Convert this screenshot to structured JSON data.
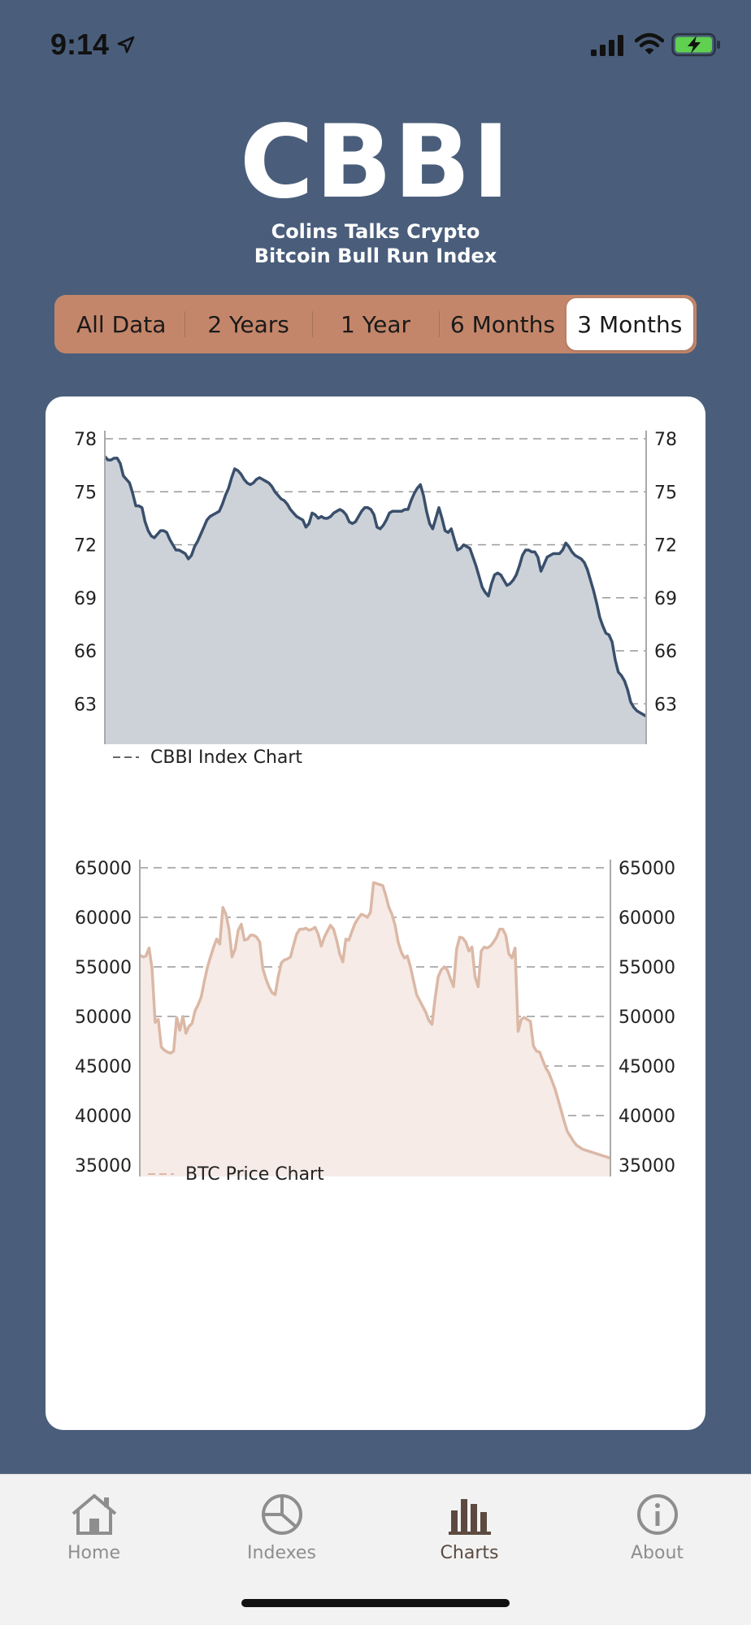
{
  "status_bar": {
    "time": "9:14",
    "icons": [
      "location-arrow-icon",
      "cellular-signal-icon",
      "wifi-icon",
      "battery-charging-icon"
    ]
  },
  "header": {
    "title": "CBBI",
    "subtitle_line1": "Colins Talks Crypto",
    "subtitle_line2": "Bitcoin Bull Run Index"
  },
  "segments": {
    "items": [
      "All Data",
      "2 Years",
      "1 Year",
      "6 Months",
      "3 Months"
    ],
    "selected": "3 Months"
  },
  "colors": {
    "background": "#4a5e7b",
    "segment_bg": "#c4866a",
    "cbbi_line": "#3a4f6c",
    "cbbi_fill": "#cdd2d9",
    "btc_line": "#dbb8a6",
    "btc_fill": "#f6ebe6"
  },
  "chart_data": [
    {
      "type": "area",
      "legend": "CBBI Index Chart",
      "legend_position": "bottom-left",
      "y_ticks": [
        "78",
        "75",
        "72",
        "69",
        "66",
        "63"
      ],
      "ylim": [
        62,
        78
      ],
      "grid": true,
      "x": [
        0,
        1,
        2,
        3,
        4,
        5,
        6,
        7,
        8,
        9,
        10,
        11,
        12,
        13,
        14,
        15,
        16,
        17,
        18,
        19,
        20,
        21,
        22,
        23,
        24,
        25,
        26,
        27,
        28,
        29,
        30,
        31,
        32,
        33,
        34,
        35,
        36,
        37,
        38,
        39,
        40,
        41,
        42,
        43,
        44,
        45,
        46,
        47,
        48,
        49,
        50,
        51,
        52,
        53,
        54,
        55,
        56,
        57,
        58,
        59,
        60,
        61,
        62,
        63,
        64,
        65,
        66,
        67,
        68,
        69,
        70,
        71,
        72,
        73,
        74,
        75,
        76,
        77,
        78,
        79,
        80,
        81,
        82,
        83,
        84,
        85,
        86,
        87,
        88,
        89,
        90,
        91,
        92,
        93,
        94,
        95,
        96,
        97,
        98,
        99,
        100,
        101,
        102,
        103,
        104,
        105,
        106,
        107,
        108,
        109,
        110,
        111,
        112,
        113,
        114,
        115,
        116,
        117,
        118,
        119,
        120,
        121,
        122,
        123,
        124,
        125,
        126,
        127,
        128,
        129,
        130,
        131,
        132,
        133,
        134,
        135,
        136,
        137,
        138,
        139,
        140,
        141,
        142,
        143,
        144,
        145,
        146,
        147,
        148,
        149,
        150,
        151,
        152,
        153,
        154,
        155,
        156,
        157,
        158,
        159,
        160,
        161,
        162,
        163,
        164,
        165,
        166,
        167,
        168,
        169,
        170,
        171,
        172,
        173,
        174,
        175
      ],
      "values": [
        77.0,
        76.8,
        76.8,
        76.9,
        76.9,
        76.6,
        75.9,
        75.7,
        75.5,
        74.9,
        74.2,
        74.2,
        74.1,
        73.3,
        72.8,
        72.5,
        72.4,
        72.6,
        72.8,
        72.8,
        72.7,
        72.3,
        72.0,
        71.7,
        71.7,
        71.6,
        71.5,
        71.2,
        71.4,
        71.9,
        72.2,
        72.6,
        73.0,
        73.4,
        73.6,
        73.7,
        73.8,
        73.9,
        74.3,
        74.8,
        75.2,
        75.8,
        76.3,
        76.2,
        76.0,
        75.7,
        75.5,
        75.4,
        75.5,
        75.7,
        75.8,
        75.7,
        75.6,
        75.5,
        75.3,
        75.0,
        74.8,
        74.6,
        74.5,
        74.3,
        74.0,
        73.8,
        73.6,
        73.5,
        73.4,
        73.0,
        73.2,
        73.8,
        73.7,
        73.5,
        73.6,
        73.5,
        73.5,
        73.6,
        73.8,
        73.9,
        74.0,
        73.9,
        73.7,
        73.3,
        73.2,
        73.3,
        73.6,
        73.9,
        74.1,
        74.1,
        74.0,
        73.7,
        73.0,
        72.9,
        73.1,
        73.4,
        73.8,
        73.9,
        73.9,
        73.9,
        73.9,
        74.0,
        74.0,
        74.5,
        74.9,
        75.2,
        75.4,
        74.8,
        73.9,
        73.2,
        72.9,
        73.5,
        74.1,
        73.5,
        72.8,
        72.7,
        72.9,
        72.3,
        71.7,
        71.8,
        72.0,
        71.9,
        71.8,
        71.3,
        70.8,
        70.2,
        69.6,
        69.3,
        69.1,
        69.8,
        70.3,
        70.4,
        70.3,
        70.0,
        69.7,
        69.8,
        70.0,
        70.3,
        70.8,
        71.4,
        71.7,
        71.7,
        71.6,
        71.6,
        71.3,
        70.5,
        70.9,
        71.3,
        71.4,
        71.5,
        71.5,
        71.5,
        71.7,
        72.1,
        71.9,
        71.6,
        71.4,
        71.3,
        71.2,
        71.0,
        70.6,
        70.0,
        69.4,
        68.7,
        67.9,
        67.4,
        67.0,
        66.9,
        66.5,
        65.5,
        64.8,
        64.6,
        64.3,
        63.8,
        63.1,
        62.8,
        62.6,
        62.5,
        62.4,
        62.3
      ],
      "note": ""
    },
    {
      "type": "area",
      "legend": "BTC Price Chart",
      "legend_position": "bottom-left",
      "y_ticks": [
        "65000",
        "60000",
        "55000",
        "50000",
        "45000",
        "40000",
        "35000"
      ],
      "ylim": [
        35000,
        65000
      ],
      "grid": true,
      "x": [
        0,
        1,
        2,
        3,
        4,
        5,
        6,
        7,
        8,
        9,
        10,
        11,
        12,
        13,
        14,
        15,
        16,
        17,
        18,
        19,
        20,
        21,
        22,
        23,
        24,
        25,
        26,
        27,
        28,
        29,
        30,
        31,
        32,
        33,
        34,
        35,
        36,
        37,
        38,
        39,
        40,
        41,
        42,
        43,
        44,
        45,
        46,
        47,
        48,
        49,
        50,
        51,
        52,
        53,
        54,
        55,
        56,
        57,
        58,
        59,
        60,
        61,
        62,
        63,
        64,
        65,
        66,
        67,
        68,
        69,
        70,
        71,
        72,
        73,
        74,
        75,
        76,
        77,
        78,
        79,
        80,
        81,
        82,
        83,
        84,
        85,
        86,
        87,
        88,
        89,
        90,
        91,
        92,
        93,
        94,
        95,
        96,
        97,
        98,
        99,
        100,
        101,
        102,
        103,
        104,
        105,
        106,
        107,
        108,
        109,
        110,
        111,
        112,
        113,
        114,
        115,
        116,
        117,
        118,
        119,
        120,
        121,
        122,
        123,
        124,
        125,
        126,
        127,
        128,
        129,
        130,
        131,
        132,
        133,
        134,
        135,
        136,
        137,
        138,
        139,
        140,
        141,
        142,
        143,
        144,
        145,
        146,
        147,
        148,
        149,
        150,
        151,
        152,
        153
      ],
      "values": [
        56200,
        56000,
        56100,
        56900,
        54800,
        49400,
        49700,
        46900,
        46600,
        46400,
        46300,
        46500,
        49900,
        48600,
        50000,
        48300,
        49000,
        49300,
        50600,
        51200,
        52000,
        53600,
        55000,
        56000,
        57000,
        57800,
        57300,
        61000,
        60300,
        58800,
        56000,
        56800,
        58700,
        59300,
        57700,
        57800,
        58200,
        58200,
        58000,
        57500,
        54800,
        53800,
        53000,
        52400,
        52200,
        54000,
        55400,
        55700,
        55800,
        56000,
        57200,
        58300,
        58800,
        58800,
        58900,
        58700,
        58800,
        59000,
        58300,
        57100,
        58000,
        58600,
        59200,
        58800,
        57700,
        56300,
        55500,
        57800,
        57700,
        58600,
        59400,
        59900,
        60300,
        60200,
        60000,
        60500,
        63500,
        63400,
        63300,
        63200,
        62200,
        61000,
        60300,
        59200,
        57500,
        56500,
        55900,
        56100,
        55000,
        53600,
        52200,
        51600,
        51000,
        50400,
        49600,
        49200,
        51800,
        54000,
        54700,
        55000,
        54700,
        53800,
        53000,
        56800,
        58000,
        57900,
        57500,
        56600,
        57000,
        54000,
        53000,
        56600,
        57000,
        56900,
        57100,
        57500,
        58000,
        58800,
        58800,
        58200,
        56300,
        55900,
        56900,
        48500,
        49700,
        49900,
        49700,
        49500,
        47000,
        46500,
        46400,
        45600,
        44800,
        44300,
        43500,
        42700,
        41600,
        40500,
        39400,
        38400,
        37900,
        37400,
        37000,
        36800,
        36600,
        36500,
        36400,
        36300,
        36200,
        36100,
        36000,
        35900,
        35800,
        35700
      ],
      "note": ""
    }
  ],
  "tabs": [
    {
      "label": "Home",
      "icon": "home-icon",
      "active": false
    },
    {
      "label": "Indexes",
      "icon": "pie-chart-icon",
      "active": false
    },
    {
      "label": "Charts",
      "icon": "bar-chart-icon",
      "active": true
    },
    {
      "label": "About",
      "icon": "info-icon",
      "active": false
    }
  ]
}
